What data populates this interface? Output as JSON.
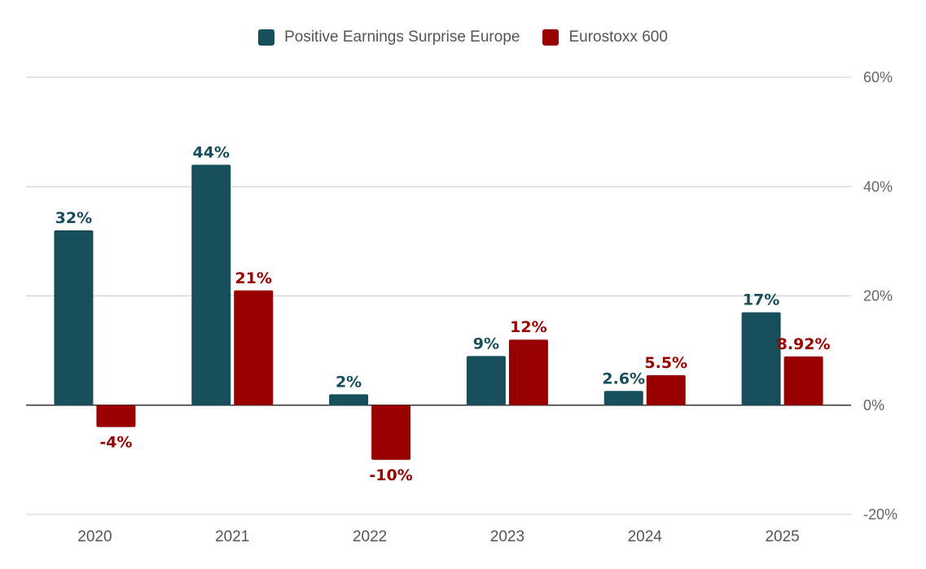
{
  "chart_data": {
    "type": "bar",
    "categories": [
      "2020",
      "2021",
      "2022",
      "2023",
      "2024",
      "2025"
    ],
    "series": [
      {
        "name": "Positive Earnings Surprise Europe",
        "color": "#164e5c",
        "values": [
          32,
          44,
          2,
          9,
          2.6,
          17
        ],
        "labels": [
          "32%",
          "44%",
          "2%",
          "9%",
          "2.6%",
          "17%"
        ]
      },
      {
        "name": "Eurostoxx 600",
        "color": "#990000",
        "values": [
          -4,
          21,
          -10,
          12,
          5.5,
          8.92
        ],
        "labels": [
          "-4%",
          "21%",
          "-10%",
          "12%",
          "5.5%",
          "8.92%"
        ]
      }
    ],
    "ylim": [
      -20,
      60
    ],
    "yticks": [
      60,
      40,
      20,
      0,
      -20
    ],
    "ytick_labels": [
      "60%",
      "40%",
      "20%",
      "0%",
      "-20%"
    ],
    "y_axis_side": "right",
    "grid": true,
    "legend_position": "top-center"
  }
}
